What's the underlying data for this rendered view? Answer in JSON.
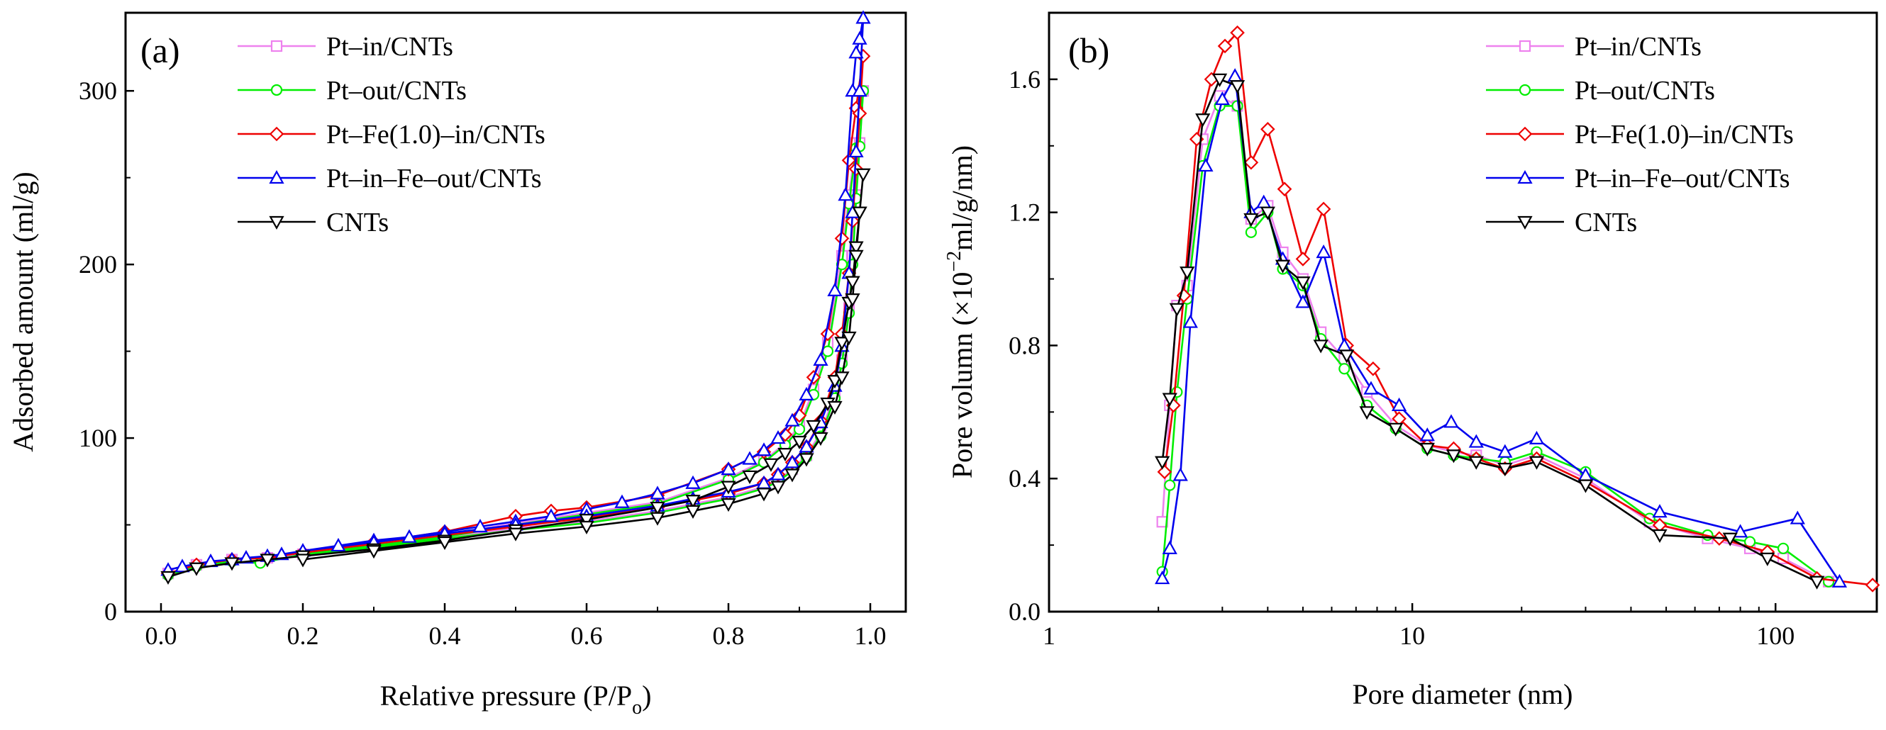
{
  "chart_data": [
    {
      "panel_label": "(a)",
      "type": "line",
      "xlabel": "Relative pressure (P/P",
      "xlabel_sub": "o",
      "xlabel_end": ")",
      "ylabel": "Adsorbed amount (ml/g)",
      "xlim": [
        -0.05,
        1.05
      ],
      "ylim": [
        0,
        345
      ],
      "xscale": "linear",
      "x_ticks": [
        0.0,
        0.2,
        0.4,
        0.6,
        0.8,
        1.0
      ],
      "x_tick_labels": [
        "0.0",
        "0.2",
        "0.4",
        "0.6",
        "0.8",
        "1.0"
      ],
      "y_ticks": [
        0,
        100,
        200,
        300
      ],
      "y_tick_labels": [
        "0",
        "100",
        "200",
        "300"
      ],
      "legend_position": "top-left",
      "series": [
        {
          "name": "Pt–in/CNTs",
          "color": "#ee82ee",
          "marker": "square",
          "x": [
            0.01,
            0.05,
            0.1,
            0.15,
            0.2,
            0.3,
            0.4,
            0.5,
            0.6,
            0.7,
            0.8,
            0.85,
            0.88,
            0.9,
            0.92,
            0.94,
            0.96,
            0.97,
            0.98,
            0.99,
            0.985,
            0.98,
            0.975,
            0.97,
            0.96,
            0.95,
            0.93,
            0.91,
            0.89,
            0.87,
            0.85,
            0.8,
            0.75,
            0.7,
            0.6,
            0.5,
            0.4,
            0.3,
            0.2
          ],
          "y": [
            22,
            27,
            30,
            31,
            33,
            38,
            44,
            51,
            57,
            63,
            77,
            87,
            97,
            107,
            128,
            155,
            205,
            240,
            270,
            300,
            270,
            240,
            205,
            175,
            145,
            125,
            103,
            90,
            82,
            76,
            72,
            66,
            62,
            58,
            52,
            48,
            43,
            38,
            33
          ]
        },
        {
          "name": "Pt–out/CNTs",
          "color": "#00ee00",
          "marker": "circle",
          "x": [
            0.01,
            0.05,
            0.1,
            0.14,
            0.2,
            0.3,
            0.4,
            0.5,
            0.6,
            0.7,
            0.8,
            0.85,
            0.88,
            0.9,
            0.92,
            0.94,
            0.96,
            0.97,
            0.98,
            0.99,
            0.985,
            0.98,
            0.975,
            0.97,
            0.96,
            0.95,
            0.93,
            0.91,
            0.89,
            0.87,
            0.85,
            0.8,
            0.75,
            0.7,
            0.6,
            0.5,
            0.4,
            0.3,
            0.2
          ],
          "y": [
            21,
            26,
            29,
            28,
            33,
            38,
            43,
            50,
            56,
            62,
            76,
            86,
            96,
            105,
            125,
            150,
            200,
            235,
            267,
            300,
            268,
            238,
            200,
            172,
            143,
            123,
            101,
            89,
            81,
            75,
            71,
            65,
            61,
            57,
            51,
            47,
            42,
            37,
            32
          ]
        },
        {
          "name": "Pt–Fe(1.0)–in/CNTs",
          "color": "#ee0000",
          "marker": "diamond",
          "x": [
            0.01,
            0.05,
            0.1,
            0.15,
            0.2,
            0.3,
            0.4,
            0.5,
            0.55,
            0.6,
            0.7,
            0.8,
            0.85,
            0.88,
            0.9,
            0.92,
            0.94,
            0.96,
            0.97,
            0.98,
            0.99,
            0.985,
            0.98,
            0.975,
            0.97,
            0.96,
            0.95,
            0.93,
            0.91,
            0.89,
            0.87,
            0.85,
            0.8,
            0.75,
            0.7,
            0.6,
            0.5,
            0.4,
            0.3,
            0.2
          ],
          "y": [
            22,
            27,
            30,
            31,
            34,
            40,
            46,
            55,
            58,
            60,
            67,
            82,
            92,
            102,
            113,
            135,
            160,
            215,
            260,
            290,
            320,
            287,
            255,
            225,
            195,
            160,
            135,
            110,
            95,
            86,
            79,
            74,
            68,
            64,
            60,
            54,
            49,
            44,
            39,
            34
          ]
        },
        {
          "name": "Pt–in–Fe–out/CNTs",
          "color": "#0000ee",
          "marker": "triangle-up",
          "x": [
            0.01,
            0.03,
            0.07,
            0.1,
            0.12,
            0.15,
            0.17,
            0.2,
            0.25,
            0.3,
            0.35,
            0.4,
            0.45,
            0.5,
            0.55,
            0.6,
            0.65,
            0.7,
            0.75,
            0.8,
            0.83,
            0.85,
            0.87,
            0.89,
            0.91,
            0.93,
            0.95,
            0.965,
            0.975,
            0.98,
            0.985,
            0.99,
            0.985,
            0.98,
            0.975,
            0.97,
            0.96,
            0.95,
            0.93,
            0.91,
            0.89,
            0.87,
            0.85,
            0.8,
            0.75,
            0.7,
            0.6,
            0.5,
            0.4,
            0.3,
            0.2
          ],
          "y": [
            24,
            26,
            29,
            30,
            31,
            32,
            33,
            35,
            38,
            41,
            43,
            46,
            49,
            52,
            55,
            59,
            63,
            68,
            74,
            82,
            88,
            93,
            100,
            110,
            125,
            145,
            185,
            240,
            300,
            322,
            330,
            342,
            300,
            265,
            230,
            195,
            153,
            130,
            109,
            95,
            86,
            79,
            74,
            69,
            65,
            61,
            55,
            50,
            45,
            40,
            35
          ]
        },
        {
          "name": "CNTs",
          "color": "#000000",
          "marker": "triangle-down",
          "x": [
            0.01,
            0.05,
            0.1,
            0.15,
            0.2,
            0.3,
            0.4,
            0.5,
            0.6,
            0.7,
            0.75,
            0.8,
            0.83,
            0.86,
            0.88,
            0.9,
            0.92,
            0.94,
            0.95,
            0.96,
            0.97,
            0.975,
            0.98,
            0.985,
            0.99,
            0.985,
            0.98,
            0.975,
            0.97,
            0.96,
            0.95,
            0.93,
            0.91,
            0.89,
            0.87,
            0.85,
            0.8,
            0.75,
            0.7,
            0.6,
            0.5,
            0.4,
            0.3,
            0.2
          ],
          "y": [
            20,
            25,
            28,
            30,
            32,
            36,
            41,
            47,
            53,
            60,
            64,
            72,
            78,
            85,
            91,
            98,
            107,
            120,
            133,
            155,
            178,
            190,
            210,
            230,
            252,
            230,
            205,
            180,
            158,
            135,
            118,
            100,
            88,
            79,
            72,
            68,
            62,
            58,
            54,
            49,
            45,
            40,
            35,
            30
          ]
        }
      ]
    },
    {
      "panel_label": "(b)",
      "type": "line",
      "xlabel": "Pore diameter (nm)",
      "ylabel_prefix": "Pore volumn (×10",
      "ylabel_sup": "−2",
      "ylabel_suffix": "ml/g/nm)",
      "xlim": [
        1,
        190
      ],
      "ylim": [
        0,
        1.8
      ],
      "xscale": "log",
      "x_ticks": [
        1,
        10,
        100
      ],
      "x_tick_labels": [
        "1",
        "10",
        "100"
      ],
      "y_ticks": [
        0.0,
        0.4,
        0.8,
        1.2,
        1.6
      ],
      "y_tick_labels": [
        "0.0",
        "0.4",
        "0.8",
        "1.2",
        "1.6"
      ],
      "legend_position": "top-right",
      "series": [
        {
          "name": "Pt–in/CNTs",
          "color": "#ee82ee",
          "marker": "square",
          "x": [
            2.05,
            2.15,
            2.25,
            2.4,
            2.65,
            2.95,
            3.3,
            3.6,
            4.0,
            4.4,
            5.0,
            5.6,
            6.5,
            7.5,
            9.0,
            11,
            13,
            15,
            18,
            22,
            30,
            45,
            65,
            85,
            105,
            140
          ],
          "y": [
            0.27,
            0.62,
            0.92,
            0.98,
            1.42,
            1.55,
            1.52,
            1.18,
            1.22,
            1.08,
            1.0,
            0.84,
            0.76,
            0.66,
            0.56,
            0.5,
            0.48,
            0.47,
            0.44,
            0.47,
            0.4,
            0.27,
            0.22,
            0.19,
            0.16,
            0.09
          ]
        },
        {
          "name": "Pt–out/CNTs",
          "color": "#00ee00",
          "marker": "circle",
          "x": [
            2.05,
            2.15,
            2.25,
            2.4,
            2.65,
            2.95,
            3.3,
            3.6,
            4.0,
            4.4,
            5.0,
            5.6,
            6.5,
            7.5,
            9.0,
            11,
            13,
            15,
            18,
            22,
            30,
            45,
            65,
            85,
            105,
            140
          ],
          "y": [
            0.12,
            0.38,
            0.66,
            0.94,
            1.34,
            1.52,
            1.52,
            1.14,
            1.2,
            1.03,
            0.98,
            0.82,
            0.73,
            0.62,
            0.55,
            0.49,
            0.47,
            0.46,
            0.45,
            0.48,
            0.42,
            0.28,
            0.23,
            0.21,
            0.19,
            0.09
          ]
        },
        {
          "name": "Pt–Fe(1.0)–in/CNTs",
          "color": "#ee0000",
          "marker": "diamond",
          "x": [
            2.08,
            2.2,
            2.35,
            2.55,
            2.8,
            3.05,
            3.3,
            3.6,
            4.0,
            4.45,
            5.0,
            5.7,
            6.6,
            7.8,
            9.2,
            11,
            13,
            15,
            18,
            22,
            30,
            48,
            70,
            95,
            130,
            185
          ],
          "y": [
            0.42,
            0.62,
            0.95,
            1.42,
            1.6,
            1.7,
            1.74,
            1.35,
            1.45,
            1.27,
            1.06,
            1.21,
            0.8,
            0.73,
            0.58,
            0.5,
            0.49,
            0.46,
            0.43,
            0.46,
            0.39,
            0.26,
            0.22,
            0.18,
            0.1,
            0.08
          ]
        },
        {
          "name": "Pt–in–Fe–out/CNTs",
          "color": "#0000ee",
          "marker": "triangle-up",
          "x": [
            2.05,
            2.15,
            2.3,
            2.45,
            2.7,
            3.0,
            3.25,
            3.6,
            3.9,
            4.4,
            5.0,
            5.7,
            6.5,
            7.7,
            9.2,
            11,
            12.8,
            15,
            18,
            22,
            30,
            48,
            80,
            115,
            150
          ],
          "y": [
            0.1,
            0.19,
            0.41,
            0.87,
            1.34,
            1.54,
            1.61,
            1.2,
            1.23,
            1.06,
            0.93,
            1.08,
            0.8,
            0.67,
            0.62,
            0.53,
            0.57,
            0.51,
            0.48,
            0.52,
            0.41,
            0.3,
            0.24,
            0.28,
            0.09
          ]
        },
        {
          "name": "CNTs",
          "color": "#000000",
          "marker": "triangle-down",
          "x": [
            2.05,
            2.15,
            2.25,
            2.4,
            2.65,
            2.95,
            3.3,
            3.6,
            4.0,
            4.4,
            5.0,
            5.6,
            6.6,
            7.5,
            9.0,
            11,
            13,
            15,
            18,
            22,
            30,
            48,
            75,
            95,
            130
          ],
          "y": [
            0.45,
            0.64,
            0.91,
            1.02,
            1.48,
            1.6,
            1.58,
            1.18,
            1.2,
            1.04,
            0.99,
            0.8,
            0.77,
            0.6,
            0.55,
            0.49,
            0.47,
            0.45,
            0.43,
            0.45,
            0.38,
            0.23,
            0.22,
            0.16,
            0.09
          ]
        }
      ]
    }
  ]
}
